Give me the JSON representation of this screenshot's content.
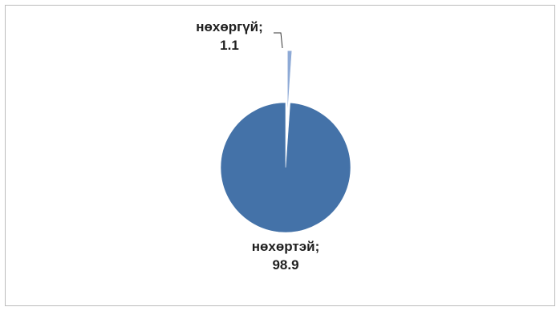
{
  "chart_data": {
    "type": "pie",
    "slices": [
      {
        "name": "нөхөргүй",
        "value": 1.1,
        "label_name": "нөхөргүй;",
        "label_value": "1.1",
        "color": "#8eaad6"
      },
      {
        "name": "нөхөртэй",
        "value": 98.9,
        "label_name": "нөхөртэй;",
        "label_value": "98.9",
        "color": "#4472a8"
      }
    ],
    "title": "",
    "legend": "none",
    "label_position": "outside"
  }
}
